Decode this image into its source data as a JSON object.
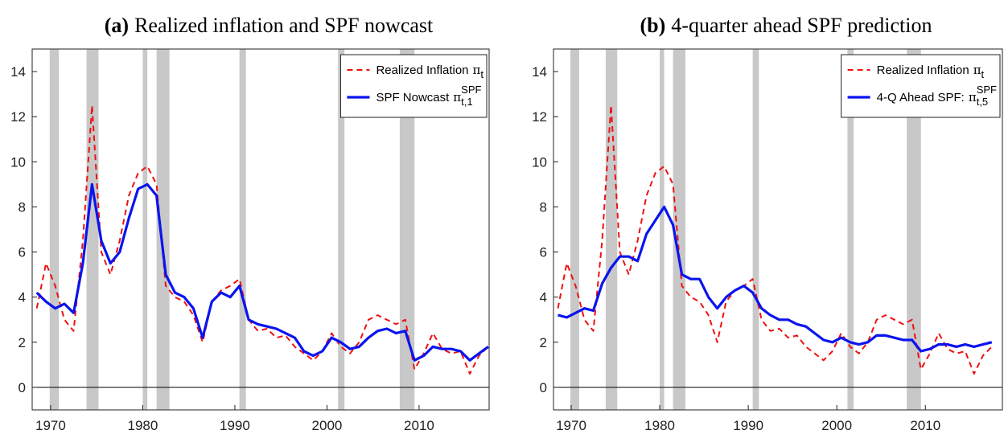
{
  "chart_data": [
    {
      "type": "line",
      "title_tag": "(a)",
      "title": "Realized inflation and SPF nowcast",
      "x": [
        1968.5,
        1969.5,
        1970.5,
        1971.5,
        1972.5,
        1973.5,
        1974.5,
        1975.5,
        1976.5,
        1977.5,
        1978.5,
        1979.5,
        1980.5,
        1981.5,
        1982.5,
        1983.5,
        1984.5,
        1985.5,
        1986.5,
        1987.5,
        1988.5,
        1989.5,
        1990.5,
        1991.5,
        1992.5,
        1993.5,
        1994.5,
        1995.5,
        1996.5,
        1997.5,
        1998.5,
        1999.5,
        2000.5,
        2001.5,
        2002.5,
        2003.5,
        2004.5,
        2005.5,
        2006.5,
        2007.5,
        2008.5,
        2009.5,
        2010.5,
        2011.5,
        2012.5,
        2013.5,
        2014.5,
        2015.5,
        2016.5,
        2017.5
      ],
      "series": [
        {
          "name": "Realized Inflation",
          "symbol": "π",
          "sub": "t",
          "color": "#ee1111",
          "dash": true,
          "values": [
            3.5,
            5.5,
            4.5,
            3.0,
            2.5,
            6.5,
            12.5,
            6.0,
            5.0,
            6.5,
            8.5,
            9.5,
            9.8,
            9.0,
            4.5,
            4.0,
            3.8,
            3.2,
            2.0,
            3.8,
            4.3,
            4.5,
            4.8,
            3.0,
            2.5,
            2.6,
            2.2,
            2.3,
            1.8,
            1.5,
            1.2,
            1.6,
            2.4,
            1.8,
            1.5,
            2.0,
            3.0,
            3.2,
            3.0,
            2.8,
            3.0,
            0.8,
            1.5,
            2.4,
            1.7,
            1.5,
            1.6,
            0.6,
            1.4,
            1.8
          ]
        },
        {
          "name": "SPF Nowcast",
          "symbol": "π",
          "sup": "SPF",
          "sub": "t,1",
          "color": "#0a14ee",
          "dash": false,
          "values": [
            4.2,
            3.8,
            3.5,
            3.7,
            3.3,
            5.5,
            9.0,
            6.5,
            5.5,
            6.0,
            7.5,
            8.8,
            9.0,
            8.5,
            5.0,
            4.2,
            4.0,
            3.5,
            2.2,
            3.8,
            4.2,
            4.0,
            4.5,
            3.0,
            2.8,
            2.7,
            2.6,
            2.4,
            2.2,
            1.6,
            1.4,
            1.6,
            2.2,
            2.0,
            1.7,
            1.8,
            2.2,
            2.5,
            2.6,
            2.4,
            2.5,
            1.2,
            1.4,
            1.8,
            1.7,
            1.7,
            1.6,
            1.2,
            1.5,
            1.8
          ]
        }
      ],
      "xlim": [
        1968,
        2017.6
      ],
      "ylim": [
        -1,
        15
      ],
      "xticks": [
        1970,
        1980,
        1990,
        2000,
        2010
      ],
      "yticks": [
        0,
        2,
        4,
        6,
        8,
        10,
        12,
        14
      ],
      "recessions": [
        [
          1969.9,
          1970.9
        ],
        [
          1973.9,
          1975.2
        ],
        [
          1980.0,
          1980.5
        ],
        [
          1981.5,
          1982.9
        ],
        [
          1990.5,
          1991.2
        ],
        [
          2001.2,
          2001.9
        ],
        [
          2007.9,
          2009.5
        ]
      ],
      "hline": 0,
      "legend": "upper right"
    },
    {
      "type": "line",
      "title_tag": "(b)",
      "title": "4-quarter ahead SPF prediction",
      "x": [
        1968.5,
        1969.5,
        1970.5,
        1971.5,
        1972.5,
        1973.5,
        1974.5,
        1975.5,
        1976.5,
        1977.5,
        1978.5,
        1979.5,
        1980.5,
        1981.5,
        1982.5,
        1983.5,
        1984.5,
        1985.5,
        1986.5,
        1987.5,
        1988.5,
        1989.5,
        1990.5,
        1991.5,
        1992.5,
        1993.5,
        1994.5,
        1995.5,
        1996.5,
        1997.5,
        1998.5,
        1999.5,
        2000.5,
        2001.5,
        2002.5,
        2003.5,
        2004.5,
        2005.5,
        2006.5,
        2007.5,
        2008.5,
        2009.5,
        2010.5,
        2011.5,
        2012.5,
        2013.5,
        2014.5,
        2015.5,
        2016.5,
        2017.5
      ],
      "series": [
        {
          "name": "Realized Inflation",
          "symbol": "π",
          "sub": "t",
          "color": "#ee1111",
          "dash": true,
          "values": [
            3.5,
            5.5,
            4.5,
            3.0,
            2.5,
            6.5,
            12.5,
            6.0,
            5.0,
            6.5,
            8.5,
            9.5,
            9.8,
            9.0,
            4.5,
            4.0,
            3.8,
            3.2,
            2.0,
            3.8,
            4.3,
            4.5,
            4.8,
            3.0,
            2.5,
            2.6,
            2.2,
            2.3,
            1.8,
            1.5,
            1.2,
            1.6,
            2.4,
            1.8,
            1.5,
            2.0,
            3.0,
            3.2,
            3.0,
            2.8,
            3.0,
            0.8,
            1.5,
            2.4,
            1.7,
            1.5,
            1.6,
            0.6,
            1.4,
            1.8
          ]
        },
        {
          "name": "4-Q Ahead SPF:",
          "symbol": "π",
          "sup": "SPF",
          "sub": "t,5",
          "color": "#0a14ee",
          "dash": false,
          "values": [
            3.2,
            3.1,
            3.3,
            3.5,
            3.4,
            4.6,
            5.3,
            5.8,
            5.8,
            5.6,
            6.8,
            7.4,
            8.0,
            7.2,
            5.0,
            4.8,
            4.8,
            4.0,
            3.5,
            4.0,
            4.3,
            4.5,
            4.2,
            3.5,
            3.2,
            3.0,
            3.0,
            2.8,
            2.7,
            2.4,
            2.1,
            2.0,
            2.2,
            2.0,
            1.9,
            2.0,
            2.3,
            2.3,
            2.2,
            2.1,
            2.1,
            1.6,
            1.7,
            1.9,
            1.9,
            1.8,
            1.9,
            1.8,
            1.9,
            2.0
          ]
        }
      ],
      "xlim": [
        1968,
        2018.7
      ],
      "ylim": [
        -1,
        15
      ],
      "xticks": [
        1970,
        1980,
        1990,
        2000,
        2010
      ],
      "yticks": [
        0,
        2,
        4,
        6,
        8,
        10,
        12,
        14
      ],
      "recessions": [
        [
          1969.9,
          1970.9
        ],
        [
          1973.9,
          1975.2
        ],
        [
          1980.0,
          1980.5
        ],
        [
          1981.5,
          1982.9
        ],
        [
          1990.5,
          1991.2
        ],
        [
          2001.2,
          2001.9
        ],
        [
          2007.9,
          2009.5
        ]
      ],
      "hline": 0,
      "legend": "upper right"
    }
  ]
}
